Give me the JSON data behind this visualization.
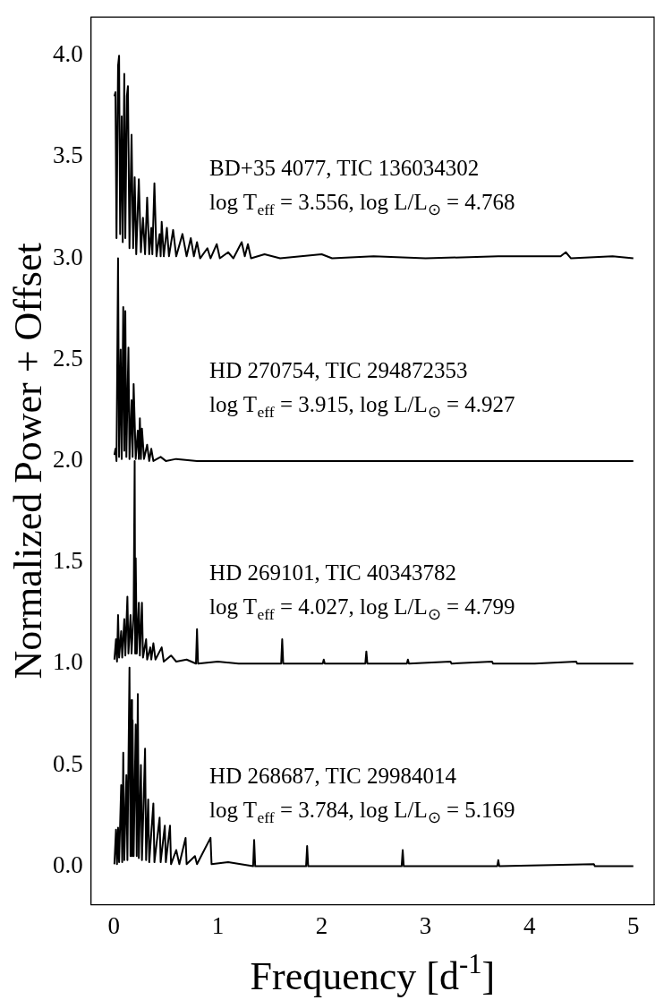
{
  "chart_data": {
    "type": "line",
    "xlabel": "Frequency [d$^{-1}$]",
    "ylabel": "Normalized Power + Offset",
    "xlim": [
      -0.22,
      5.2
    ],
    "ylim": [
      -0.19,
      4.19
    ],
    "xticks": [
      0,
      1,
      2,
      3,
      4,
      5
    ],
    "yticks": [
      {
        "value": 0,
        "label": "0.0"
      },
      {
        "value": 0.5,
        "label": "0.5"
      },
      {
        "value": 1,
        "label": "1.0"
      },
      {
        "value": 1.5,
        "label": "1.5"
      },
      {
        "value": 2,
        "label": "2.0"
      },
      {
        "value": 2.5,
        "label": "2.5"
      },
      {
        "value": 3,
        "label": "3.0"
      },
      {
        "value": 3.5,
        "label": "3.5"
      },
      {
        "value": 4,
        "label": "4.0"
      }
    ],
    "grid": false,
    "legend": false,
    "marker": "none",
    "annotations": [
      "BD+35 4077, TIC 136034302",
      "log T$_{eff}$ = 3.556, log L/L$_{⊙}$ = 4.768",
      "HD 270754, TIC 294872353",
      "log T$_{eff}$ = 3.915, log L/L$_{⊙}$ = 4.927",
      "HD 269101, TIC 40343782",
      "log T$_{eff}$ = 4.027, log L/L$_{⊙}$ = 4.799",
      "HD 268687, TIC 29984014",
      "log T$_{eff}$ = 3.784, log L/L$_{⊙}$ = 5.169"
    ],
    "series": [
      {
        "color": "#000000",
        "x": [
          0.005,
          0.015,
          0.025,
          0.04,
          0.05,
          0.06,
          0.075,
          0.085,
          0.1,
          0.11,
          0.125,
          0.135,
          0.15,
          0.17,
          0.185,
          0.2,
          0.215,
          0.24,
          0.26,
          0.28,
          0.3,
          0.32,
          0.34,
          0.36,
          0.37,
          0.39,
          0.41,
          0.44,
          0.45,
          0.46,
          0.48,
          0.51,
          0.53,
          0.57,
          0.6,
          0.66,
          0.7,
          0.74,
          0.77,
          0.8,
          0.83,
          0.9,
          0.93,
          0.99,
          1.02,
          1.1,
          1.15,
          1.23,
          1.26,
          1.29,
          1.32,
          1.45,
          1.6,
          2.0,
          2.1,
          2.5,
          3.0,
          3.7,
          4.3,
          4.35,
          4.4,
          4.8,
          5.0
        ],
        "values": [
          3.8,
          3.82,
          3.1,
          3.95,
          4.0,
          3.12,
          3.7,
          3.08,
          3.91,
          3.1,
          3.8,
          3.85,
          3.05,
          3.61,
          3.05,
          3.4,
          3.02,
          3.39,
          3.03,
          3.2,
          3.02,
          3.3,
          3.02,
          3.15,
          3.02,
          3.37,
          3.01,
          3.12,
          3.01,
          3.18,
          3.01,
          3.15,
          3.01,
          3.14,
          3.01,
          3.12,
          3.01,
          3.1,
          3.01,
          3.08,
          3.0,
          3.05,
          3.0,
          3.07,
          3.0,
          3.03,
          3.0,
          3.08,
          3.01,
          3.07,
          3.0,
          3.02,
          3.0,
          3.02,
          3.0,
          3.01,
          3.0,
          3.01,
          3.01,
          3.03,
          3.0,
          3.01,
          3.0
        ]
      },
      {
        "color": "#000000",
        "x": [
          0.005,
          0.015,
          0.025,
          0.04,
          0.05,
          0.065,
          0.075,
          0.09,
          0.1,
          0.11,
          0.12,
          0.14,
          0.15,
          0.17,
          0.18,
          0.19,
          0.21,
          0.23,
          0.24,
          0.25,
          0.26,
          0.27,
          0.29,
          0.32,
          0.34,
          0.36,
          0.38,
          0.45,
          0.5,
          0.6,
          0.8,
          5.0
        ],
        "values": [
          2.03,
          2.06,
          2.0,
          3.0,
          2.02,
          2.55,
          2.01,
          2.76,
          2.05,
          2.74,
          2.02,
          2.56,
          2.01,
          2.3,
          2.02,
          2.38,
          2.01,
          2.15,
          2.01,
          2.21,
          2.01,
          2.16,
          2.01,
          2.08,
          2.0,
          2.06,
          2.0,
          2.02,
          2.0,
          2.01,
          2.0,
          2.0
        ]
      },
      {
        "color": "#000000",
        "x": [
          0.005,
          0.02,
          0.03,
          0.04,
          0.05,
          0.07,
          0.08,
          0.1,
          0.11,
          0.13,
          0.14,
          0.16,
          0.17,
          0.19,
          0.2,
          0.205,
          0.21,
          0.22,
          0.24,
          0.25,
          0.27,
          0.28,
          0.31,
          0.32,
          0.35,
          0.36,
          0.38,
          0.4,
          0.46,
          0.48,
          0.55,
          0.6,
          0.7,
          0.79,
          0.8,
          0.81,
          1.0,
          1.2,
          1.61,
          1.62,
          1.63,
          2.01,
          2.02,
          2.03,
          2.42,
          2.43,
          2.44,
          2.82,
          2.83,
          2.84,
          3.24,
          3.25,
          3.64,
          3.65,
          4.05,
          4.45,
          4.46,
          5.0
        ],
        "values": [
          1.02,
          1.12,
          1.01,
          1.24,
          1.03,
          1.16,
          1.03,
          1.22,
          1.04,
          1.33,
          1.05,
          1.24,
          1.05,
          1.25,
          2.0,
          1.05,
          1.52,
          1.05,
          1.3,
          1.04,
          1.3,
          1.03,
          1.12,
          1.02,
          1.08,
          1.02,
          1.1,
          1.02,
          1.08,
          1.01,
          1.04,
          1.01,
          1.02,
          1.0,
          1.17,
          1.0,
          1.01,
          1.0,
          1.0,
          1.12,
          1.0,
          1.0,
          1.02,
          1.0,
          1.0,
          1.06,
          1.0,
          1.0,
          1.02,
          1.0,
          1.01,
          1.0,
          1.01,
          1.0,
          1.0,
          1.01,
          1.0,
          1.0
        ]
      },
      {
        "color": "#000000",
        "x": [
          0.005,
          0.02,
          0.03,
          0.04,
          0.05,
          0.07,
          0.08,
          0.09,
          0.1,
          0.12,
          0.13,
          0.15,
          0.16,
          0.17,
          0.175,
          0.18,
          0.19,
          0.21,
          0.22,
          0.23,
          0.24,
          0.26,
          0.27,
          0.3,
          0.31,
          0.33,
          0.34,
          0.38,
          0.39,
          0.44,
          0.45,
          0.49,
          0.5,
          0.54,
          0.55,
          0.6,
          0.63,
          0.69,
          0.7,
          0.78,
          0.8,
          0.93,
          0.94,
          1.1,
          1.34,
          1.35,
          1.36,
          1.85,
          1.86,
          1.87,
          2.77,
          2.78,
          2.79,
          3.69,
          3.7,
          3.71,
          4.62,
          4.63,
          5.0
        ],
        "values": [
          0.01,
          0.18,
          0.01,
          0.19,
          0.02,
          0.4,
          0.02,
          0.56,
          0.03,
          0.45,
          0.03,
          0.98,
          0.05,
          0.82,
          0.05,
          0.72,
          0.05,
          0.7,
          0.05,
          0.85,
          0.04,
          0.5,
          0.03,
          0.58,
          0.03,
          0.33,
          0.02,
          0.31,
          0.02,
          0.24,
          0.02,
          0.2,
          0.02,
          0.2,
          0.01,
          0.08,
          0.01,
          0.14,
          0.01,
          0.05,
          0.01,
          0.14,
          0.01,
          0.02,
          0.0,
          0.13,
          0.0,
          0.0,
          0.1,
          0.0,
          0.0,
          0.08,
          0.0,
          0.0,
          0.03,
          0.0,
          0.01,
          0.0,
          0.0
        ]
      }
    ]
  }
}
